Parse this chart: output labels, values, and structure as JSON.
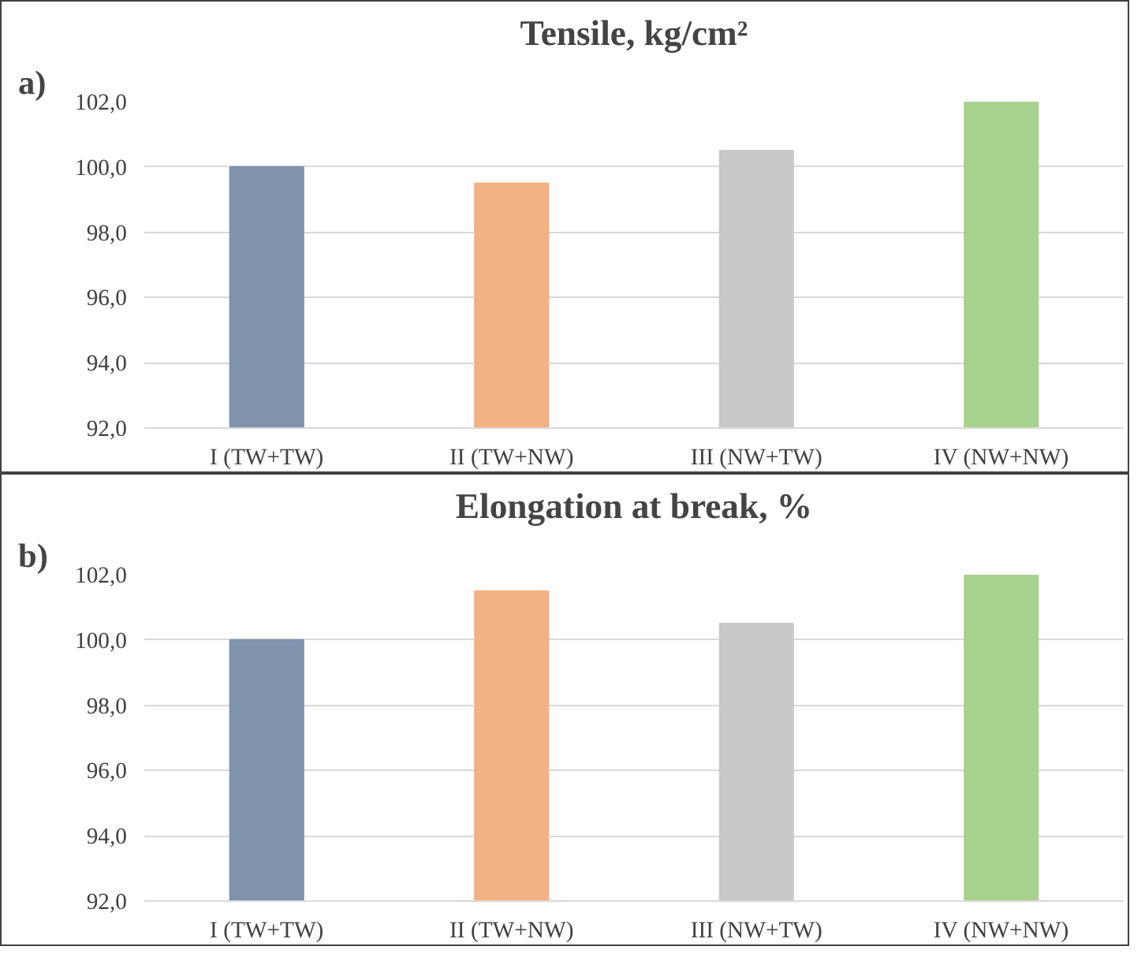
{
  "chart_data": [
    {
      "type": "bar",
      "title": "Tensile, kg/cm²",
      "annotations": [
        "a)"
      ],
      "categories": [
        "I (TW+TW)",
        "II (TW+NW)",
        "III (NW+TW)",
        "IV (NW+NW)"
      ],
      "values": [
        100.0,
        99.5,
        100.5,
        102.0
      ],
      "colors": [
        "#7f93ad",
        "#f4b183",
        "#c9c9c9",
        "#a9d18e"
      ],
      "ylim": [
        92,
        102
      ],
      "yticks": [
        {
          "value": 92,
          "label": "92,0"
        },
        {
          "value": 94,
          "label": "94,0"
        },
        {
          "value": 96,
          "label": "96,0"
        },
        {
          "value": 98,
          "label": "98,0"
        },
        {
          "value": 100,
          "label": "100,0"
        },
        {
          "value": 102,
          "label": "102,0"
        }
      ],
      "grid": "y"
    },
    {
      "type": "bar",
      "title": "Elongation at break, %",
      "annotations": [
        "b)"
      ],
      "categories": [
        "I (TW+TW)",
        "II (TW+NW)",
        "III (NW+TW)",
        "IV (NW+NW)"
      ],
      "values": [
        100.0,
        101.5,
        100.5,
        102.0
      ],
      "colors": [
        "#7f93ad",
        "#f4b183",
        "#c9c9c9",
        "#a9d18e"
      ],
      "ylim": [
        92,
        102
      ],
      "yticks": [
        {
          "value": 92,
          "label": "92,0"
        },
        {
          "value": 94,
          "label": "94,0"
        },
        {
          "value": 96,
          "label": "96,0"
        },
        {
          "value": 98,
          "label": "98,0"
        },
        {
          "value": 100,
          "label": "100,0"
        },
        {
          "value": 102,
          "label": "102,0"
        }
      ],
      "grid": "y"
    }
  ]
}
